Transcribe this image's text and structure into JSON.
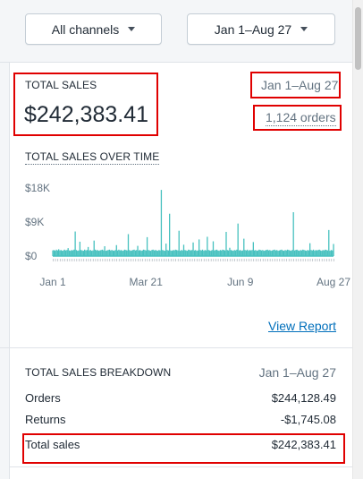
{
  "filters": {
    "channel_label": "All channels",
    "date_label": "Jan 1–Aug 27"
  },
  "total_sales": {
    "title": "TOTAL SALES",
    "amount": "$242,383.41",
    "date_range": "Jan 1–Aug 27",
    "orders": "1,124 orders"
  },
  "over_time": {
    "title": "TOTAL SALES OVER TIME",
    "view_report": "View Report"
  },
  "chart_data": {
    "type": "bar",
    "title": "TOTAL SALES OVER TIME",
    "xlabel": "",
    "ylabel": "",
    "ylim": [
      0,
      18000
    ],
    "y_ticks": [
      "$0",
      "$9K",
      "$18K"
    ],
    "y_tick_values": [
      0,
      9000,
      18000
    ],
    "x_ticks": [
      "Jan 1",
      "Mar 21",
      "Jun 9",
      "Aug 27"
    ],
    "x_tick_days": [
      0,
      79,
      159,
      238
    ],
    "color": "#47c1bf",
    "baseline": 1500,
    "series": [
      {
        "values_by_day": [
          1500,
          1600,
          1400,
          1700,
          1500,
          1800,
          1500,
          1600,
          1400,
          1500,
          1700,
          1500,
          1600,
          2100,
          1500,
          1400,
          1600,
          1500,
          1700,
          6500,
          1600,
          1400,
          1500,
          3800,
          1600,
          1500,
          1400,
          1700,
          1500,
          1600,
          2400,
          1500,
          1600,
          1400,
          1500,
          4100,
          1700,
          1500,
          1600,
          1400,
          1500,
          1600,
          1700,
          1500,
          2600,
          1400,
          1500,
          1600,
          1700,
          1500,
          1600,
          1500,
          1400,
          1600,
          2900,
          1500,
          1700,
          1500,
          1600,
          1400,
          1500,
          1700,
          1600,
          1500,
          5800,
          1600,
          1400,
          1500,
          1600,
          1700,
          1500,
          1600,
          2700,
          1500,
          1600,
          1400,
          1500,
          1700,
          1600,
          1500,
          5000,
          1600,
          1500,
          1400,
          1600,
          1700,
          1500,
          1600,
          1500,
          1400,
          1600,
          1500,
          17500,
          1600,
          1500,
          1400,
          3300,
          1600,
          1500,
          11200,
          1500,
          1400,
          1600,
          1500,
          1700,
          1600,
          1500,
          6700,
          1400,
          1600,
          1500,
          3000,
          1600,
          1500,
          1400,
          1700,
          1600,
          1500,
          1600,
          3600,
          1500,
          1600,
          1400,
          1500,
          4400,
          1600,
          1500,
          1700,
          1400,
          1600,
          1500,
          5100,
          1600,
          1500,
          1400,
          1600,
          3900,
          1500,
          1600,
          1700,
          1500,
          1400,
          1600,
          1500,
          1700,
          1600,
          1500,
          6400,
          1600,
          1500,
          2200,
          1600,
          1500,
          1400,
          1600,
          1500,
          1700,
          8600,
          1500,
          1600,
          1400,
          1500,
          4600,
          1600,
          1500,
          1700,
          1400,
          1600,
          1500,
          1600,
          3700,
          1500,
          1600,
          1400,
          1500,
          1700,
          1600,
          1500,
          1600,
          1400,
          1500,
          1600,
          1700,
          1500,
          1600,
          1400,
          1500,
          1600,
          1700,
          1500,
          1600,
          1400,
          1500,
          1600,
          1700,
          1500,
          1400,
          1600,
          1500,
          1700,
          1600,
          1500,
          1400,
          1600,
          11600,
          1500,
          1600,
          1700,
          1500,
          1400,
          1600,
          1500,
          1700,
          1600,
          1500,
          1400,
          1600,
          1500,
          3400,
          1600,
          1500,
          1700,
          1400,
          1600,
          1500,
          1600,
          1700,
          1500,
          1400,
          1600,
          1500,
          1700,
          1600,
          1500,
          6900,
          1400,
          1600,
          1500,
          3200
        ]
      }
    ],
    "grid": false
  },
  "breakdown": {
    "title": "TOTAL SALES BREAKDOWN",
    "date_range": "Jan 1–Aug 27",
    "rows": [
      {
        "label": "Orders",
        "value": "$244,128.49"
      },
      {
        "label": "Returns",
        "value": "-$1,745.08"
      },
      {
        "label": "Total sales",
        "value": "$242,383.41"
      }
    ]
  }
}
